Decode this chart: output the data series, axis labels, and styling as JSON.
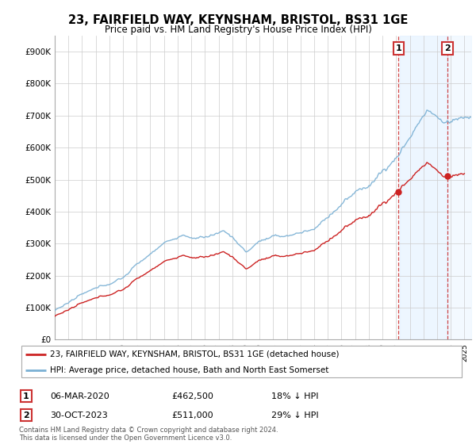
{
  "title": "23, FAIRFIELD WAY, KEYNSHAM, BRISTOL, BS31 1GE",
  "subtitle": "Price paid vs. HM Land Registry's House Price Index (HPI)",
  "ylabel_ticks": [
    "£0",
    "£100K",
    "£200K",
    "£300K",
    "£400K",
    "£500K",
    "£600K",
    "£700K",
    "£800K",
    "£900K"
  ],
  "ytick_values": [
    0,
    100000,
    200000,
    300000,
    400000,
    500000,
    600000,
    700000,
    800000,
    900000
  ],
  "ylim": [
    0,
    950000
  ],
  "legend_line1": "23, FAIRFIELD WAY, KEYNSHAM, BRISTOL, BS31 1GE (detached house)",
  "legend_line2": "HPI: Average price, detached house, Bath and North East Somerset",
  "sale1_date": "06-MAR-2020",
  "sale1_price": "£462,500",
  "sale1_hpi": "18% ↓ HPI",
  "sale2_date": "30-OCT-2023",
  "sale2_price": "£511,000",
  "sale2_hpi": "29% ↓ HPI",
  "footer": "Contains HM Land Registry data © Crown copyright and database right 2024.\nThis data is licensed under the Open Government Licence v3.0.",
  "hpi_color": "#7ab0d4",
  "sale_color": "#cc2222",
  "bg_color": "#ffffff",
  "grid_color": "#cccccc",
  "annotation_box_color": "#cc3333",
  "shade_color": "#ddeeff",
  "sale1_year_float": 2020.17,
  "sale2_year_float": 2023.75,
  "sale1_price_val": 462500,
  "sale2_price_val": 511000
}
